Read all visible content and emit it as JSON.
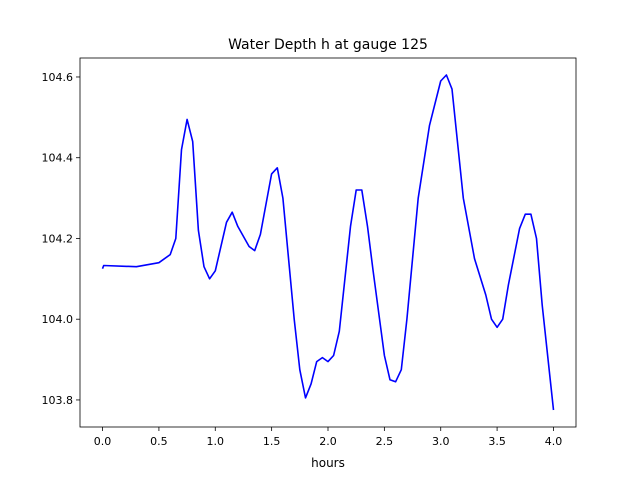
{
  "chart_data": {
    "type": "line",
    "title": "Water Depth h at gauge 125",
    "xlabel": "hours",
    "ylabel": "",
    "xlim": [
      -0.2,
      4.2
    ],
    "ylim": [
      103.733,
      104.647
    ],
    "xticks": [
      0.0,
      0.5,
      1.0,
      1.5,
      2.0,
      2.5,
      3.0,
      3.5,
      4.0
    ],
    "xtick_labels": [
      "0.0",
      "0.5",
      "1.0",
      "1.5",
      "2.0",
      "2.5",
      "3.0",
      "3.5",
      "4.0"
    ],
    "yticks": [
      103.8,
      104.0,
      104.2,
      104.4,
      104.6
    ],
    "ytick_labels": [
      "103.8",
      "104.0",
      "104.2",
      "104.4",
      "104.6"
    ],
    "grid": false,
    "series": [
      {
        "name": "h",
        "color": "#0000ff",
        "x": [
          0.0,
          0.01,
          0.3,
          0.5,
          0.6,
          0.65,
          0.7,
          0.75,
          0.8,
          0.85,
          0.9,
          0.95,
          1.0,
          1.1,
          1.15,
          1.2,
          1.3,
          1.35,
          1.4,
          1.5,
          1.55,
          1.6,
          1.7,
          1.75,
          1.8,
          1.85,
          1.9,
          1.95,
          2.0,
          2.05,
          2.1,
          2.2,
          2.25,
          2.3,
          2.35,
          2.4,
          2.5,
          2.55,
          2.6,
          2.65,
          2.7,
          2.8,
          2.9,
          3.0,
          3.05,
          3.1,
          3.2,
          3.3,
          3.4,
          3.45,
          3.5,
          3.55,
          3.6,
          3.7,
          3.75,
          3.8,
          3.85,
          3.9,
          4.0
        ],
        "y": [
          104.125,
          104.133,
          104.13,
          104.14,
          104.16,
          104.2,
          104.42,
          104.495,
          104.44,
          104.22,
          104.13,
          104.1,
          104.12,
          104.24,
          104.265,
          104.23,
          104.18,
          104.17,
          104.21,
          104.36,
          104.375,
          104.3,
          104.0,
          103.875,
          103.805,
          103.84,
          103.895,
          103.905,
          103.895,
          103.91,
          103.97,
          104.23,
          104.32,
          104.32,
          104.23,
          104.12,
          103.91,
          103.85,
          103.845,
          103.875,
          104.0,
          104.3,
          104.48,
          104.59,
          104.605,
          104.57,
          104.3,
          104.15,
          104.06,
          104.0,
          103.98,
          104.0,
          104.085,
          104.225,
          104.26,
          104.26,
          104.2,
          104.035,
          103.775
        ]
      }
    ]
  }
}
